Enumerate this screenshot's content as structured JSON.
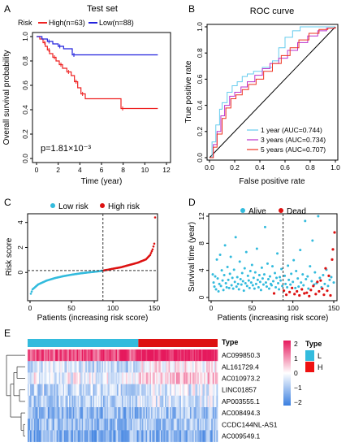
{
  "panels": {
    "A": {
      "letter": "A",
      "title": "Test set",
      "legend": {
        "label": "Risk",
        "high": "High(n=63)",
        "low": "Low(n=88)"
      },
      "xlabel": "Time (year)",
      "ylabel": "Overall survival probability",
      "pvalue": "p=1.81×10⁻³"
    },
    "B": {
      "letter": "B",
      "title": "ROC curve",
      "xlabel": "False positive rate",
      "ylabel": "True positive rate",
      "legend": [
        "1 year (AUC=0.744)",
        "3 years (AUC=0.734)",
        "5 years (AUC=0.707)"
      ]
    },
    "C": {
      "letter": "C",
      "legend": [
        "Low risk",
        "High risk"
      ],
      "xlabel": "Patients (increasing risk score)",
      "ylabel": "Risk score"
    },
    "D": {
      "letter": "D",
      "legend": [
        "Alive",
        "Dead"
      ],
      "xlabel": "Patients (increasing risk score)",
      "ylabel": "Survival time (year)"
    },
    "E": {
      "letter": "E",
      "type_label": "Type",
      "legend_title": "Type",
      "legend_items": [
        "L",
        "H"
      ]
    }
  },
  "colors": {
    "high": "#ee2222",
    "low": "#2222dd",
    "roc1": "#66ccee",
    "roc3": "#bb33cc",
    "roc5": "#ee3322",
    "lowrisk": "#33bbdd",
    "highrisk": "#dd1111",
    "heat_high": "#e6195d",
    "heat_mid": "#ffffff",
    "heat_low": "#3b7fe0"
  },
  "chart_data": [
    {
      "type": "line",
      "id": "km",
      "xlim": [
        0,
        12
      ],
      "ylim": [
        0,
        1
      ],
      "xticks": [
        0,
        2,
        4,
        6,
        8,
        10,
        12
      ],
      "yticks": [
        0.0,
        0.2,
        0.4,
        0.6,
        0.8,
        1.0
      ],
      "series": [
        {
          "name": "High(n=63)",
          "x": [
            0,
            0.3,
            0.6,
            0.8,
            1.0,
            1.2,
            1.5,
            1.8,
            2.1,
            2.4,
            2.8,
            3.2,
            3.5,
            3.8,
            4.1,
            4.5,
            7.8,
            11.2
          ],
          "y": [
            1.0,
            0.98,
            0.95,
            0.92,
            0.89,
            0.86,
            0.83,
            0.8,
            0.77,
            0.74,
            0.71,
            0.68,
            0.63,
            0.58,
            0.53,
            0.49,
            0.41,
            0.41
          ]
        },
        {
          "name": "Low(n=88)",
          "x": [
            0,
            0.5,
            1.0,
            1.5,
            2.0,
            2.5,
            3.3,
            11.2
          ],
          "y": [
            1.0,
            0.98,
            0.96,
            0.94,
            0.92,
            0.9,
            0.85,
            0.85
          ]
        }
      ]
    },
    {
      "type": "line",
      "id": "roc",
      "xlim": [
        0,
        1
      ],
      "ylim": [
        0,
        1
      ],
      "xticks": [
        0.0,
        0.2,
        0.4,
        0.6,
        0.8,
        1.0
      ],
      "yticks": [
        0.0,
        0.2,
        0.4,
        0.6,
        0.8,
        1.0
      ],
      "series": [
        {
          "name": "1 year (AUC=0.744)",
          "x": [
            0,
            0.02,
            0.05,
            0.08,
            0.1,
            0.14,
            0.18,
            0.22,
            0.26,
            0.3,
            0.35,
            0.42,
            0.5,
            0.55,
            0.6,
            0.66,
            0.72,
            0.8,
            0.88,
            0.95,
            1.0
          ],
          "y": [
            0,
            0.12,
            0.25,
            0.37,
            0.42,
            0.5,
            0.55,
            0.58,
            0.62,
            0.64,
            0.66,
            0.69,
            0.74,
            0.84,
            0.92,
            0.97,
            1.0,
            1.0,
            1.0,
            1.0,
            1.0
          ]
        },
        {
          "name": "3 years (AUC=0.734)",
          "x": [
            0,
            0.03,
            0.06,
            0.09,
            0.12,
            0.16,
            0.2,
            0.25,
            0.3,
            0.36,
            0.42,
            0.48,
            0.55,
            0.62,
            0.7,
            0.78,
            0.86,
            0.93,
            1.0
          ],
          "y": [
            0,
            0.1,
            0.2,
            0.32,
            0.4,
            0.47,
            0.5,
            0.54,
            0.58,
            0.63,
            0.68,
            0.72,
            0.76,
            0.82,
            0.88,
            0.93,
            0.97,
            0.99,
            1.0
          ]
        },
        {
          "name": "5 years (AUC=0.707)",
          "x": [
            0,
            0.03,
            0.06,
            0.1,
            0.13,
            0.17,
            0.21,
            0.26,
            0.31,
            0.37,
            0.43,
            0.5,
            0.57,
            0.64,
            0.71,
            0.79,
            0.87,
            0.94,
            1.0
          ],
          "y": [
            0,
            0.08,
            0.18,
            0.3,
            0.38,
            0.45,
            0.48,
            0.52,
            0.56,
            0.6,
            0.66,
            0.72,
            0.78,
            0.84,
            0.9,
            0.95,
            0.98,
            0.99,
            1.0
          ]
        }
      ]
    },
    {
      "type": "scatter",
      "id": "riskscore",
      "xlim": [
        0,
        151
      ],
      "ylim": [
        -2,
        4.5
      ],
      "xticks": [
        0,
        50,
        100,
        150
      ],
      "yticks": [
        0,
        2,
        4
      ],
      "cutoff_index": 88,
      "cutoff_value": 0.15,
      "knots_x": [
        1,
        3,
        10,
        20,
        30,
        40,
        50,
        60,
        70,
        80,
        88,
        95,
        100,
        110,
        120,
        130,
        140,
        145,
        148,
        150,
        151
      ],
      "knots_y": [
        -1.7,
        -1.35,
        -0.95,
        -0.65,
        -0.45,
        -0.3,
        -0.18,
        -0.08,
        0.0,
        0.07,
        0.15,
        0.23,
        0.3,
        0.42,
        0.6,
        0.78,
        1.05,
        1.4,
        1.85,
        2.3,
        4.4
      ]
    },
    {
      "type": "scatter",
      "id": "survival",
      "xlim": [
        0,
        151
      ],
      "ylim": [
        0,
        12
      ],
      "xticks": [
        0,
        50,
        100,
        150
      ],
      "yticks": [
        0,
        4,
        8,
        12
      ],
      "cutoff_index": 88,
      "alive": [
        [
          2,
          3.4
        ],
        [
          3,
          2.2
        ],
        [
          4,
          1.6
        ],
        [
          5,
          3.1
        ],
        [
          6,
          1.2
        ],
        [
          7,
          5.6
        ],
        [
          8,
          2.8
        ],
        [
          9,
          0.9
        ],
        [
          10,
          2.0
        ],
        [
          11,
          6.3
        ],
        [
          12,
          1.7
        ],
        [
          13,
          4.0
        ],
        [
          14,
          2.5
        ],
        [
          15,
          1.1
        ],
        [
          16,
          3.3
        ],
        [
          17,
          7.7
        ],
        [
          18,
          2.1
        ],
        [
          19,
          1.5
        ],
        [
          20,
          4.5
        ],
        [
          21,
          2.6
        ],
        [
          22,
          1.4
        ],
        [
          23,
          3.5
        ],
        [
          24,
          6.0
        ],
        [
          25,
          1.8
        ],
        [
          26,
          2.9
        ],
        [
          27,
          1.3
        ],
        [
          28,
          4.1
        ],
        [
          29,
          2.3
        ],
        [
          30,
          8.9
        ],
        [
          31,
          1.6
        ],
        [
          32,
          3.0
        ],
        [
          33,
          2.0
        ],
        [
          34,
          1.2
        ],
        [
          35,
          5.3
        ],
        [
          36,
          2.7
        ],
        [
          37,
          1.9
        ],
        [
          38,
          3.6
        ],
        [
          39,
          2.4
        ],
        [
          40,
          1.0
        ],
        [
          41,
          4.3
        ],
        [
          42,
          2.1
        ],
        [
          43,
          6.7
        ],
        [
          44,
          1.7
        ],
        [
          45,
          3.2
        ],
        [
          46,
          2.5
        ],
        [
          47,
          1.4
        ],
        [
          48,
          3.9
        ],
        [
          49,
          2.2
        ],
        [
          50,
          4.8
        ],
        [
          51,
          1.8
        ],
        [
          52,
          2.9
        ],
        [
          53,
          1.3
        ],
        [
          54,
          3.7
        ],
        [
          55,
          2.0
        ],
        [
          56,
          7.2
        ],
        [
          57,
          2.6
        ],
        [
          58,
          1.5
        ],
        [
          59,
          3.3
        ],
        [
          60,
          2.3
        ],
        [
          61,
          1.1
        ],
        [
          62,
          4.4
        ],
        [
          63,
          2.8
        ],
        [
          64,
          1.9
        ],
        [
          65,
          3.4
        ],
        [
          66,
          10.4
        ],
        [
          67,
          2.2
        ],
        [
          68,
          1.6
        ],
        [
          69,
          5.0
        ],
        [
          70,
          2.7
        ],
        [
          71,
          1.3
        ],
        [
          72,
          3.1
        ],
        [
          73,
          2.0
        ],
        [
          74,
          1.8
        ],
        [
          75,
          4.6
        ],
        [
          76,
          2.4
        ],
        [
          78,
          3.6
        ],
        [
          79,
          1.5
        ],
        [
          80,
          2.9
        ],
        [
          81,
          6.5
        ],
        [
          82,
          2.1
        ],
        [
          83,
          1.2
        ],
        [
          84,
          3.0
        ],
        [
          85,
          2.5
        ],
        [
          86,
          4.2
        ],
        [
          87,
          1.7
        ],
        [
          90,
          3.2
        ],
        [
          91,
          2.0
        ],
        [
          93,
          1.5
        ],
        [
          94,
          4.7
        ],
        [
          95,
          2.6
        ],
        [
          97,
          1.9
        ],
        [
          98,
          3.5
        ],
        [
          100,
          2.3
        ],
        [
          101,
          5.5
        ],
        [
          103,
          1.4
        ],
        [
          104,
          3.9
        ],
        [
          106,
          2.8
        ],
        [
          107,
          1.6
        ],
        [
          109,
          7.0
        ],
        [
          110,
          2.2
        ],
        [
          112,
          3.4
        ],
        [
          113,
          1.8
        ],
        [
          115,
          11.3
        ],
        [
          116,
          2.7
        ],
        [
          118,
          3.1
        ],
        [
          119,
          1.3
        ],
        [
          121,
          4.6
        ],
        [
          123,
          2.4
        ],
        [
          124,
          8.4
        ],
        [
          126,
          1.9
        ],
        [
          127,
          3.7
        ],
        [
          129,
          2.1
        ],
        [
          131,
          12.0
        ],
        [
          133,
          2.9
        ],
        [
          135,
          1.5
        ],
        [
          137,
          3.3
        ],
        [
          139,
          2.0
        ],
        [
          141,
          4.1
        ],
        [
          143,
          1.7
        ],
        [
          145,
          2.6
        ],
        [
          147,
          3.0
        ],
        [
          150,
          2.2
        ]
      ],
      "dead": [
        [
          77,
          0.6
        ],
        [
          89,
          1.0
        ],
        [
          92,
          0.4
        ],
        [
          96,
          0.8
        ],
        [
          99,
          1.4
        ],
        [
          102,
          0.5
        ],
        [
          105,
          0.9
        ],
        [
          108,
          0.3
        ],
        [
          111,
          1.2
        ],
        [
          114,
          0.6
        ],
        [
          117,
          0.7
        ],
        [
          120,
          0.2
        ],
        [
          122,
          1.1
        ],
        [
          125,
          1.7
        ],
        [
          128,
          0.5
        ],
        [
          130,
          2.3
        ],
        [
          132,
          0.9
        ],
        [
          134,
          2.5
        ],
        [
          136,
          1.3
        ],
        [
          138,
          0.4
        ],
        [
          140,
          4.3
        ],
        [
          142,
          1.0
        ],
        [
          144,
          3.2
        ],
        [
          146,
          0.3
        ],
        [
          148,
          5.6
        ],
        [
          149,
          7.1
        ],
        [
          151,
          9.6
        ]
      ]
    },
    {
      "type": "heatmap",
      "id": "expression",
      "genes": [
        "AC099850.3",
        "AL161729.4",
        "AC010973.2",
        "LINC01857",
        "AP003555.1",
        "AC008494.3",
        "CCDC144NL-AS1",
        "AC009549.1"
      ],
      "n_low": 88,
      "n_high": 63,
      "color_scale": [
        -2,
        2
      ],
      "colorbar_ticks": [
        2,
        1,
        0,
        -1,
        -2
      ]
    }
  ]
}
